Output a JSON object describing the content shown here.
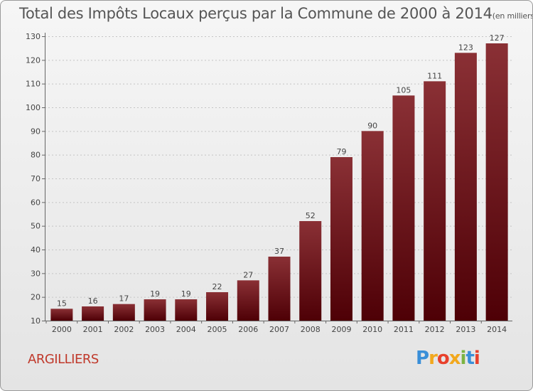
{
  "chart_data": {
    "type": "bar",
    "title": "Total des Impôts Locaux perçus par la Commune de 2000 à 2014",
    "unit_label": "(en milliers d'€)",
    "categories": [
      "2000",
      "2001",
      "2002",
      "2003",
      "2004",
      "2005",
      "2006",
      "2007",
      "2008",
      "2009",
      "2010",
      "2011",
      "2012",
      "2013",
      "2014"
    ],
    "values": [
      15,
      16,
      17,
      19,
      19,
      22,
      27,
      37,
      52,
      79,
      90,
      105,
      111,
      123,
      127
    ],
    "ylim": [
      10,
      130
    ],
    "yticks": [
      10,
      20,
      30,
      40,
      50,
      60,
      70,
      80,
      90,
      100,
      110,
      120,
      130
    ],
    "grid": true,
    "bar_color_top": "#8a3035",
    "bar_color_bottom": "#4e0006"
  },
  "commune_name": "ARGILLIERS",
  "logo": {
    "letters": [
      "P",
      "r",
      "o",
      "x",
      "i",
      "t",
      "i"
    ],
    "colors": [
      "#3a8fd8",
      "#f2a81d",
      "#e8412c",
      "#f2a81d",
      "#7cb342",
      "#3a8fd8",
      "#e8412c"
    ]
  }
}
